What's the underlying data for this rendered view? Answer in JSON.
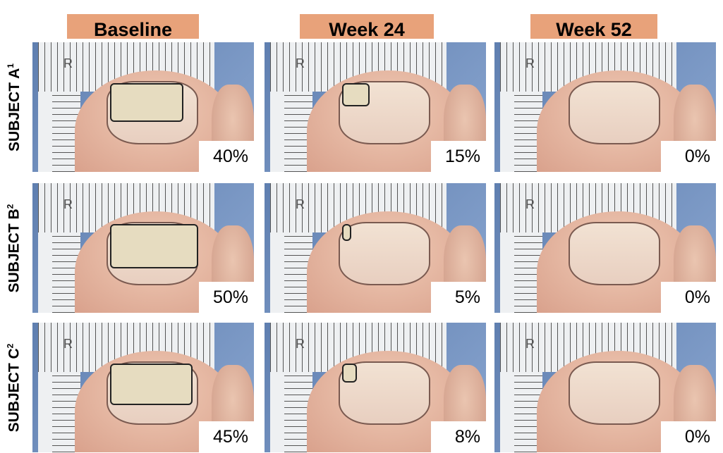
{
  "columns": [
    "Baseline",
    "Week 24",
    "Week 52"
  ],
  "rows": [
    {
      "label": "SUBJECT A",
      "sup": "1",
      "values": [
        "40%",
        "15%",
        "0%"
      ],
      "lesion": [
        40,
        15,
        0
      ]
    },
    {
      "label": "SUBJECT B",
      "sup": "2",
      "values": [
        "50%",
        "5%",
        "0%"
      ],
      "lesion": [
        50,
        5,
        0
      ]
    },
    {
      "label": "SUBJECT C",
      "sup": "2",
      "values": [
        "45%",
        "8%",
        "0%"
      ],
      "lesion": [
        45,
        8,
        0
      ]
    }
  ],
  "ruler_mark": "R",
  "colors": {
    "header_bg": "#e8a27a"
  }
}
